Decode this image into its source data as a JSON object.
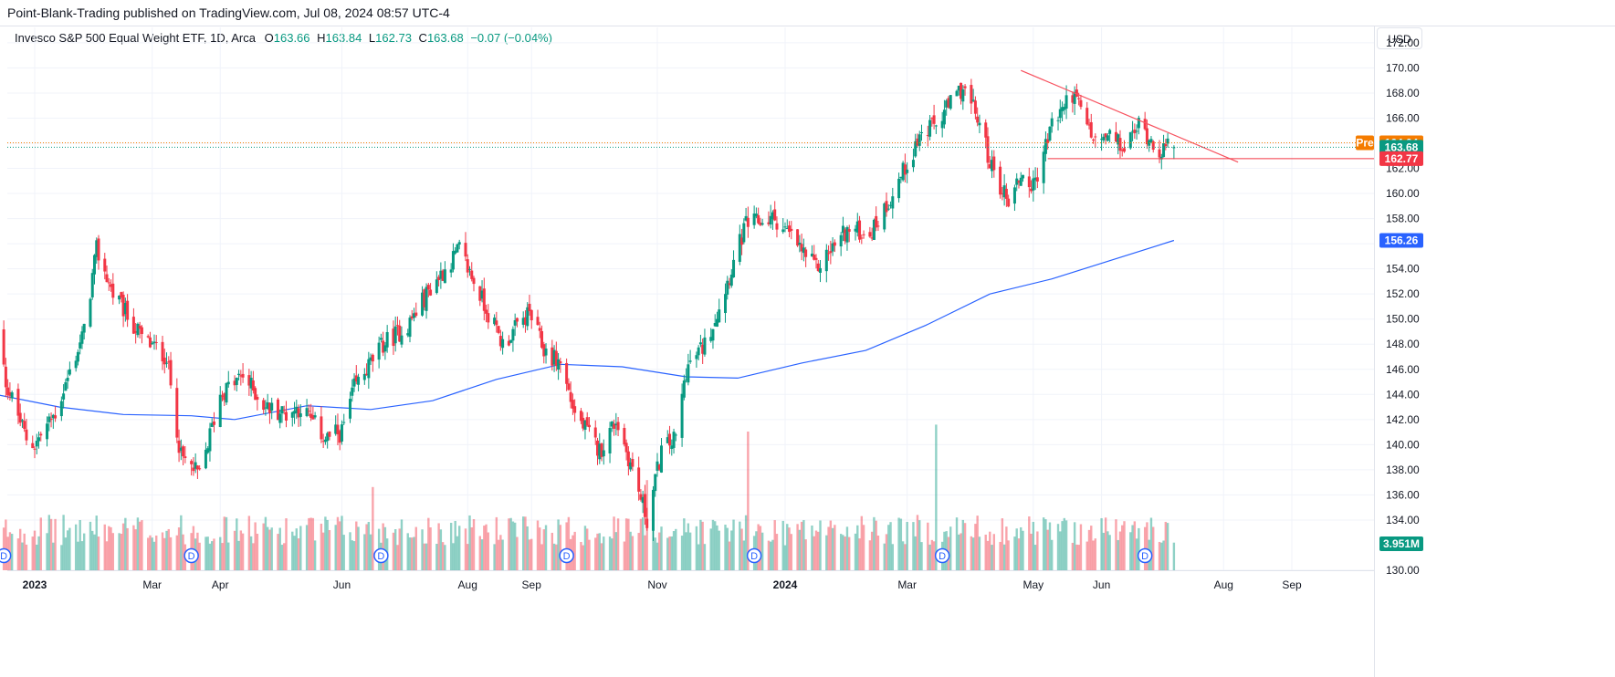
{
  "header": {
    "publisher_text": "Point-Blank-Trading published on TradingView.com, Jul 08, 2024 08:57 UTC-4"
  },
  "legend": {
    "symbol_text": "Invesco S&P 500 Equal Weight ETF, 1D, Arca",
    "open_key": "O",
    "open_val": "163.66",
    "high_key": "H",
    "high_val": "163.84",
    "low_key": "L",
    "low_val": "162.73",
    "close_key": "C",
    "close_val": "163.68",
    "change_val": "−0.07 (−0.04%)"
  },
  "currency_button": "USD",
  "colors": {
    "up": "#089981",
    "down": "#f23645",
    "ma": "#2962ff",
    "trendline": "#f7525f",
    "support": "#f23645",
    "pre_tag": "#f57c00",
    "last_tag": "#089981",
    "low_tag": "#f23645",
    "ma_tag": "#2962ff",
    "volume_tag": "#089981",
    "dividend": "#2962ff"
  },
  "chart_data": {
    "type": "candlestick",
    "title": "Invesco S&P 500 Equal Weight ETF, 1D, Arca",
    "y_axis": {
      "range": [
        130,
        172.5
      ],
      "ticks": [
        "130.00",
        "134.00",
        "136.00",
        "138.00",
        "140.00",
        "142.00",
        "144.00",
        "146.00",
        "148.00",
        "150.00",
        "152.00",
        "154.00",
        "156.00",
        "158.00",
        "160.00",
        "162.00",
        "164.00",
        "166.00",
        "168.00",
        "170.00",
        "172.00"
      ],
      "position": "right"
    },
    "x_axis": {
      "ticks": [
        {
          "label": "2023",
          "date": "2023-01-03",
          "bold": true
        },
        {
          "label": "Mar",
          "date": "2023-03-01",
          "bold": false
        },
        {
          "label": "Apr",
          "date": "2023-04-03",
          "bold": false
        },
        {
          "label": "Jun",
          "date": "2023-06-01",
          "bold": false
        },
        {
          "label": "Aug",
          "date": "2023-08-01",
          "bold": false
        },
        {
          "label": "Sep",
          "date": "2023-09-01",
          "bold": false
        },
        {
          "label": "Nov",
          "date": "2023-11-01",
          "bold": false
        },
        {
          "label": "2024",
          "date": "2024-01-02",
          "bold": true
        },
        {
          "label": "Mar",
          "date": "2024-03-01",
          "bold": false
        },
        {
          "label": "May",
          "date": "2024-05-01",
          "bold": false
        },
        {
          "label": "Jun",
          "date": "2024-06-03",
          "bold": false
        },
        {
          "label": "Aug",
          "date": "2024-08-01",
          "bold": false
        },
        {
          "label": "Sep",
          "date": "2024-09-03",
          "bold": false
        }
      ]
    },
    "price_path_anchors": [
      {
        "date": "2022-12-15",
        "close": 150.0
      },
      {
        "date": "2022-12-20",
        "close": 145.0
      },
      {
        "date": "2022-12-30",
        "close": 140.5
      },
      {
        "date": "2023-01-03",
        "close": 140.0
      },
      {
        "date": "2023-01-13",
        "close": 142.5
      },
      {
        "date": "2023-01-27",
        "close": 149.0
      },
      {
        "date": "2023-02-02",
        "close": 155.5
      },
      {
        "date": "2023-02-10",
        "close": 152.0
      },
      {
        "date": "2023-02-24",
        "close": 148.5
      },
      {
        "date": "2023-03-08",
        "close": 147.0
      },
      {
        "date": "2023-03-15",
        "close": 139.0
      },
      {
        "date": "2023-03-24",
        "close": 137.5
      },
      {
        "date": "2023-04-03",
        "close": 144.0
      },
      {
        "date": "2023-04-14",
        "close": 145.5
      },
      {
        "date": "2023-04-25",
        "close": 143.0
      },
      {
        "date": "2023-05-05",
        "close": 142.5
      },
      {
        "date": "2023-05-12",
        "close": 143.0
      },
      {
        "date": "2023-05-24",
        "close": 140.5
      },
      {
        "date": "2023-06-01",
        "close": 141.0
      },
      {
        "date": "2023-06-07",
        "close": 144.5
      },
      {
        "date": "2023-06-21",
        "close": 148.0
      },
      {
        "date": "2023-07-03",
        "close": 149.5
      },
      {
        "date": "2023-07-14",
        "close": 152.5
      },
      {
        "date": "2023-07-28",
        "close": 155.5
      },
      {
        "date": "2023-08-04",
        "close": 153.0
      },
      {
        "date": "2023-08-18",
        "close": 148.0
      },
      {
        "date": "2023-08-31",
        "close": 150.5
      },
      {
        "date": "2023-09-07",
        "close": 147.5
      },
      {
        "date": "2023-09-15",
        "close": 146.5
      },
      {
        "date": "2023-09-22",
        "close": 142.5
      },
      {
        "date": "2023-10-04",
        "close": 139.5
      },
      {
        "date": "2023-10-12",
        "close": 142.0
      },
      {
        "date": "2023-10-20",
        "close": 138.0
      },
      {
        "date": "2023-10-27",
        "close": 134.0
      },
      {
        "date": "2023-11-03",
        "close": 139.5
      },
      {
        "date": "2023-11-10",
        "close": 140.5
      },
      {
        "date": "2023-11-15",
        "close": 146.0
      },
      {
        "date": "2023-11-24",
        "close": 148.0
      },
      {
        "date": "2023-12-01",
        "close": 151.0
      },
      {
        "date": "2023-12-14",
        "close": 157.5
      },
      {
        "date": "2023-12-28",
        "close": 158.0
      },
      {
        "date": "2024-01-05",
        "close": 156.5
      },
      {
        "date": "2024-01-17",
        "close": 154.0
      },
      {
        "date": "2024-01-31",
        "close": 157.0
      },
      {
        "date": "2024-02-13",
        "close": 157.0
      },
      {
        "date": "2024-02-23",
        "close": 160.0
      },
      {
        "date": "2024-03-07",
        "close": 164.5
      },
      {
        "date": "2024-03-15",
        "close": 165.5
      },
      {
        "date": "2024-03-28",
        "close": 168.5
      },
      {
        "date": "2024-04-04",
        "close": 166.0
      },
      {
        "date": "2024-04-12",
        "close": 161.5
      },
      {
        "date": "2024-04-19",
        "close": 159.5
      },
      {
        "date": "2024-04-25",
        "close": 161.5
      },
      {
        "date": "2024-05-01",
        "close": 160.5
      },
      {
        "date": "2024-05-10",
        "close": 165.5
      },
      {
        "date": "2024-05-20",
        "close": 168.0
      },
      {
        "date": "2024-05-31",
        "close": 164.0
      },
      {
        "date": "2024-06-07",
        "close": 164.5
      },
      {
        "date": "2024-06-14",
        "close": 163.5
      },
      {
        "date": "2024-06-21",
        "close": 165.5
      },
      {
        "date": "2024-07-01",
        "close": 163.5
      },
      {
        "date": "2024-07-08",
        "close": 163.68
      }
    ],
    "last_bar": {
      "date": "2024-07-08",
      "open": 163.66,
      "high": 163.84,
      "low": 162.73,
      "close": 163.68
    },
    "moving_average": {
      "points": [
        {
          "date": "2022-12-15",
          "value": 144.0
        },
        {
          "date": "2023-01-15",
          "value": 143.0
        },
        {
          "date": "2023-02-15",
          "value": 142.4
        },
        {
          "date": "2023-03-20",
          "value": 142.3
        },
        {
          "date": "2023-04-10",
          "value": 142.0
        },
        {
          "date": "2023-05-15",
          "value": 143.1
        },
        {
          "date": "2023-06-15",
          "value": 142.8
        },
        {
          "date": "2023-07-15",
          "value": 143.5
        },
        {
          "date": "2023-08-15",
          "value": 145.2
        },
        {
          "date": "2023-09-15",
          "value": 146.4
        },
        {
          "date": "2023-10-15",
          "value": 146.2
        },
        {
          "date": "2023-11-15",
          "value": 145.4
        },
        {
          "date": "2023-12-10",
          "value": 145.3
        },
        {
          "date": "2024-01-10",
          "value": 146.5
        },
        {
          "date": "2024-02-10",
          "value": 147.5
        },
        {
          "date": "2024-03-10",
          "value": 149.5
        },
        {
          "date": "2024-04-10",
          "value": 152.0
        },
        {
          "date": "2024-05-10",
          "value": 153.2
        },
        {
          "date": "2024-06-10",
          "value": 154.8
        },
        {
          "date": "2024-07-08",
          "value": 156.26
        }
      ]
    },
    "trendline": {
      "start": {
        "date": "2024-04-25",
        "value": 169.8
      },
      "end": {
        "date": "2024-08-08",
        "value": 162.5
      }
    },
    "support_line": {
      "start": {
        "date": "2024-05-08",
        "value": 162.77
      },
      "value": 162.77
    },
    "price_tags": [
      {
        "label": "Pre",
        "value": "164.04",
        "color_key": "pre_tag",
        "price": 164.04
      },
      {
        "label": "",
        "value": "163.68",
        "color_key": "last_tag",
        "price": 163.68
      },
      {
        "label": "",
        "value": "162.77",
        "color_key": "low_tag",
        "price": 162.77
      },
      {
        "label": "",
        "value": "156.26",
        "color_key": "ma_tag",
        "price": 156.26
      }
    ],
    "volume_tag": "3.951M",
    "dividends": [
      {
        "date": "2022-12-19",
        "label": "D"
      },
      {
        "date": "2023-03-20",
        "label": "D"
      },
      {
        "date": "2023-06-20",
        "label": "D"
      },
      {
        "date": "2023-09-18",
        "label": "D"
      },
      {
        "date": "2023-12-18",
        "label": "D"
      },
      {
        "date": "2024-03-18",
        "label": "D"
      },
      {
        "date": "2024-06-24",
        "label": "D"
      }
    ],
    "volume_spikes": [
      {
        "date": "2023-12-15",
        "rel": 1.0
      },
      {
        "date": "2024-03-15",
        "rel": 1.05
      },
      {
        "date": "2023-06-16",
        "rel": 0.6
      },
      {
        "date": "2023-10-27",
        "rel": 0.65
      }
    ]
  }
}
